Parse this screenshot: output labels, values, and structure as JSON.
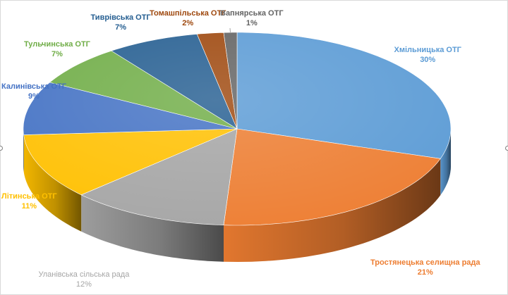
{
  "chart_data": {
    "type": "pie",
    "title": "",
    "categories": [
      "Хмільницька ОТГ",
      "Тростянецька селищна рада",
      "Уланівська сільська рада",
      "Літинська ОТГ",
      "Калинівська ОТГ",
      "Тульчинська ОТГ",
      "Тиврівська ОТГ",
      "Томашпільська ОТГ",
      "Вапнярська ОТГ"
    ],
    "values": [
      30,
      21,
      12,
      11,
      9,
      7,
      7,
      2,
      1
    ],
    "value_labels": [
      "30%",
      "21%",
      "12%",
      "11%",
      "9%",
      "7%",
      "7%",
      "2%",
      "1%"
    ],
    "colors": [
      "#5b9bd5",
      "#ed7d31",
      "#a5a5a5",
      "#ffc000",
      "#4472c4",
      "#70ad47",
      "#255e91",
      "#9e480e",
      "#636363"
    ],
    "label_colors": [
      "#5b9bd5",
      "#ed7d31",
      "#a5a5a5",
      "#ffc000",
      "#4472c4",
      "#70ad47",
      "#255e91",
      "#9e480e",
      "#636363"
    ],
    "style": "3d-pie",
    "legend": "none",
    "data_labels": "outside-end"
  }
}
